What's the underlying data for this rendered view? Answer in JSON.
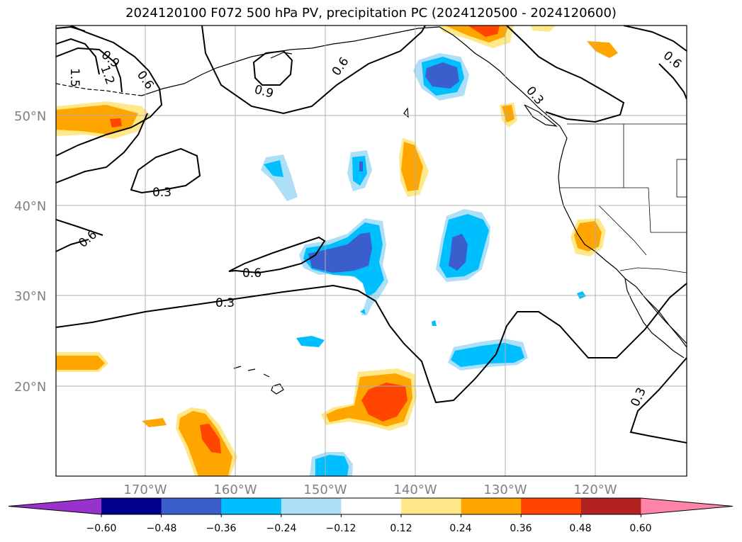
{
  "title": "2024120100 F072 500 hPa PV, precipitation PC (2024120500 - 2024120600)",
  "map": {
    "lat_labels": [
      "50°N",
      "40°N",
      "30°N",
      "20°N"
    ],
    "lon_labels": [
      "170°W",
      "160°W",
      "150°W",
      "140°W",
      "130°W",
      "120°W"
    ],
    "grid": true,
    "pv_contour_labels": [
      "0.9",
      "1.2",
      "1.5",
      "0.6",
      "0.9",
      "0.6",
      "0.3",
      "0.6",
      "0.3",
      "0.6",
      "0.3",
      "0.3",
      "0.6",
      "0.6"
    ]
  },
  "colorbar": {
    "tick_labels": [
      "−0.60",
      "−0.48",
      "−0.36",
      "−0.24",
      "−0.12",
      "0.12",
      "0.24",
      "0.36",
      "0.48",
      "0.60"
    ],
    "colors": [
      "#9932CC",
      "#00008B",
      "#3A5FCD",
      "#00BFFF",
      "#ADE0F7",
      "#FFFFFF",
      "#FFE88A",
      "#FFA500",
      "#FF4500",
      "#B22222",
      "#FF85A8"
    ]
  },
  "colors": {
    "pos1": "#FFE88A",
    "pos2": "#FFA500",
    "pos3": "#FF4500",
    "neg1": "#ADE0F7",
    "neg2": "#00BFFF",
    "neg3": "#3A5FCD"
  }
}
